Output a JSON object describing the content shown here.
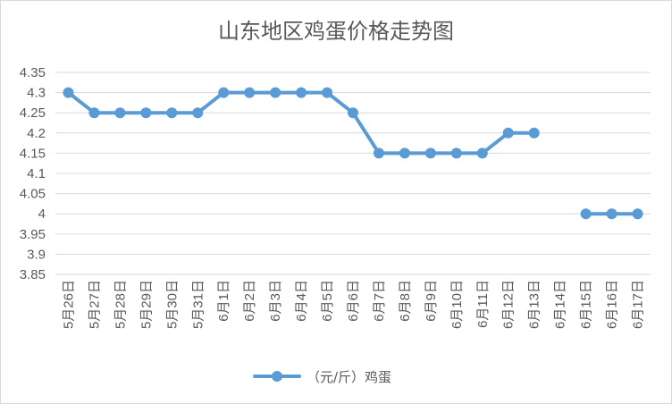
{
  "chart_data": {
    "type": "line",
    "title": "山东地区鸡蛋价格走势图",
    "xlabel": "",
    "ylabel": "",
    "categories": [
      "5月26日",
      "5月27日",
      "5月28日",
      "5月29日",
      "5月30日",
      "5月31日",
      "6月1日",
      "6月2日",
      "6月3日",
      "6月4日",
      "6月5日",
      "6月6日",
      "6月7日",
      "6月8日",
      "6月9日",
      "6月10日",
      "6月11日",
      "6月12日",
      "6月13日",
      "6月14日",
      "6月15日",
      "6月16日",
      "6月17日"
    ],
    "series": [
      {
        "name": "（元/斤）鸡蛋",
        "color": "#5b9bd5",
        "values": [
          4.3,
          4.25,
          4.25,
          4.25,
          4.25,
          4.25,
          4.3,
          4.3,
          4.3,
          4.3,
          4.3,
          4.25,
          4.15,
          4.15,
          4.15,
          4.15,
          4.15,
          4.2,
          4.2,
          null,
          4.0,
          4.0,
          4.0
        ]
      }
    ],
    "ylim": [
      3.85,
      4.35
    ],
    "yticks": [
      "4.35",
      "4.3",
      "4.25",
      "4.2",
      "4.15",
      "4.1",
      "4.05",
      "4",
      "3.95",
      "3.9",
      "3.85"
    ],
    "grid": true,
    "legend": "bottom"
  }
}
